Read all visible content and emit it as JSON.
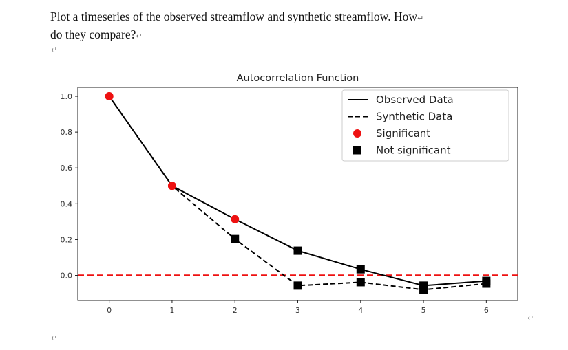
{
  "document": {
    "line1": "Plot a timeseries of the observed streamflow and synthetic streamflow. How",
    "line2": "do they compare?",
    "paragraph_mark": "↵"
  },
  "chart_data": {
    "type": "line",
    "title": "Autocorrelation Function",
    "xlabel": "",
    "ylabel": "",
    "x": [
      0,
      1,
      2,
      3,
      4,
      5,
      6
    ],
    "xlim": [
      -0.5,
      6.5
    ],
    "ylim": [
      -0.14,
      1.05
    ],
    "xticks": [
      "0",
      "1",
      "2",
      "3",
      "4",
      "5",
      "6"
    ],
    "yticks": [
      {
        "v": 0.0,
        "label": "0.0"
      },
      {
        "v": 0.2,
        "label": "0.2"
      },
      {
        "v": 0.4,
        "label": "0.4"
      },
      {
        "v": 0.6,
        "label": "0.6"
      },
      {
        "v": 0.8,
        "label": "0.8"
      },
      {
        "v": 1.0,
        "label": "1.0"
      }
    ],
    "grid": false,
    "legend_placement": "top-right",
    "series": [
      {
        "name": "Observed Data",
        "style": "solid",
        "values": [
          1.0,
          0.5,
          0.314,
          0.138,
          0.034,
          -0.057,
          -0.031
        ],
        "significant": [
          true,
          true,
          true,
          false,
          false,
          false,
          false
        ]
      },
      {
        "name": "Synthetic Data",
        "style": "dashed",
        "values": [
          1.0,
          0.5,
          0.203,
          -0.057,
          -0.038,
          -0.08,
          -0.046
        ],
        "significant": [
          true,
          true,
          false,
          false,
          false,
          false,
          false
        ]
      }
    ],
    "reference_line": {
      "y": 0.0,
      "color": "#ee1111",
      "style": "dashed"
    },
    "legend": [
      "Observed Data",
      "Synthetic Data",
      "Significant",
      "Not significant"
    ],
    "colors": {
      "line": "#000000",
      "significant": "#ee1111",
      "not_significant": "#000000"
    }
  }
}
